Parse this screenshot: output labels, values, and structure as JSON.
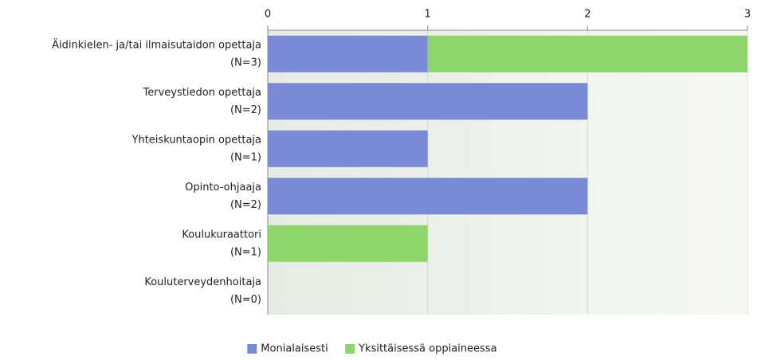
{
  "chart_data": {
    "type": "bar",
    "orientation": "horizontal",
    "stacked": true,
    "categories": [
      [
        "Äidinkielen- ja/tai ilmaisutaidon opettaja",
        "(N=3)"
      ],
      [
        "Terveystiedon opettaja",
        "(N=2)"
      ],
      [
        "Yhteiskuntaopin opettaja",
        "(N=1)"
      ],
      [
        "Opinto-ohjaaja",
        "(N=2)"
      ],
      [
        "Koulukuraattori",
        "(N=1)"
      ],
      [
        "Kouluterveydenhoitaja",
        "(N=0)"
      ]
    ],
    "series": [
      {
        "name": "Monialaisesti",
        "color": "#7b8ad6",
        "values": [
          1,
          2,
          1,
          2,
          0,
          0
        ]
      },
      {
        "name": "Yksittäisessä oppiaineessa",
        "color": "#8ed56e",
        "values": [
          2,
          0,
          0,
          0,
          1,
          0
        ]
      }
    ],
    "xlim": [
      0,
      3
    ],
    "xticks": [
      0,
      1,
      2,
      3
    ],
    "grid": true,
    "legend": "bottom"
  }
}
